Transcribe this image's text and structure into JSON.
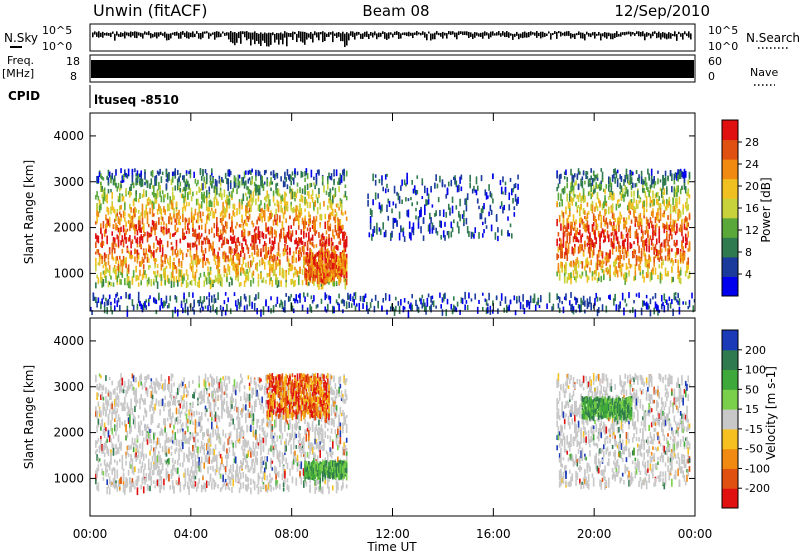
{
  "header": {
    "station": "Unwin (fitACF)",
    "beam": "Beam 08",
    "date": "12/Sep/2010"
  },
  "noise_panel": {
    "left_label": "N.Sky",
    "right_label": "N.Search",
    "left_ticks": [
      "10^5",
      "10^0"
    ],
    "right_ticks": [
      "10^5",
      "10^0"
    ]
  },
  "freq_panel": {
    "left_label_line1": "Freq.",
    "left_label_line2": "[MHz]",
    "left_ticks": [
      "18",
      "8"
    ],
    "right_ticks": [
      "60",
      "0"
    ],
    "right_label": "Nave"
  },
  "cpid_panel": {
    "label": "CPID",
    "value": "ltuseq -8510"
  },
  "x_axis": {
    "title": "Time UT",
    "ticks": [
      "00:00",
      "04:00",
      "08:00",
      "12:00",
      "16:00",
      "20:00",
      "00:00"
    ]
  },
  "colors": {
    "power_scale": [
      "#0000ee",
      "#1a3a9c",
      "#2f7a4e",
      "#5aa83a",
      "#c8d23a",
      "#f0c020",
      "#f08a10",
      "#e05010",
      "#e01010"
    ],
    "velocity_scale": [
      "#1a3ab8",
      "#2f7a4e",
      "#3fa83a",
      "#7ad04a",
      "#c8c8c8",
      "#f5c020",
      "#f08a10",
      "#e05010",
      "#e01010"
    ]
  },
  "chart_data": [
    {
      "type": "heatmap",
      "id": "power",
      "ylabel": "Slant Range [km]",
      "ylim": [
        180,
        4500
      ],
      "yticks": [
        "1000",
        "2000",
        "3000",
        "4000"
      ],
      "xlim_hours": [
        0,
        24
      ],
      "colorbar": {
        "label": "Power [dB]",
        "ticks": [
          "4",
          "8",
          "12",
          "16",
          "20",
          "24",
          "28"
        ],
        "range": [
          0,
          30
        ]
      },
      "regions": [
        {
          "t0": 0.2,
          "t1": 10.2,
          "r0": 800,
          "r1": 3300,
          "level": "mixed"
        },
        {
          "t0": 8.5,
          "t1": 10.2,
          "r0": 900,
          "r1": 1500,
          "level": "high"
        },
        {
          "t0": 11.0,
          "t1": 17.0,
          "r0": 1800,
          "r1": 3200,
          "level": "low"
        },
        {
          "t0": 18.5,
          "t1": 23.8,
          "r0": 900,
          "r1": 3300,
          "level": "mixed"
        },
        {
          "t0": 0.0,
          "t1": 24.0,
          "r0": 200,
          "r1": 600,
          "level": "sparse"
        }
      ]
    },
    {
      "type": "heatmap",
      "id": "velocity",
      "ylabel": "Slant Range [km]",
      "ylim": [
        180,
        4500
      ],
      "yticks": [
        "1000",
        "2000",
        "3000",
        "4000"
      ],
      "xlim_hours": [
        0,
        24
      ],
      "colorbar": {
        "label": "Velocity [m s-1]",
        "ticks": [
          "200",
          "100",
          "50",
          "15",
          "-15",
          "-50",
          "-100",
          "-200"
        ],
        "range": [
          -250,
          250
        ]
      },
      "regions": [
        {
          "t0": 0.2,
          "t1": 10.2,
          "r0": 800,
          "r1": 3300,
          "level": "near-zero"
        },
        {
          "t0": 7.0,
          "t1": 9.5,
          "r0": 2400,
          "r1": 3300,
          "level": "negative"
        },
        {
          "t0": 8.5,
          "t1": 10.2,
          "r0": 1100,
          "r1": 1400,
          "level": "positive"
        },
        {
          "t0": 18.5,
          "t1": 23.8,
          "r0": 900,
          "r1": 3300,
          "level": "near-zero"
        },
        {
          "t0": 19.5,
          "t1": 21.5,
          "r0": 2400,
          "r1": 2800,
          "level": "positive"
        }
      ]
    }
  ]
}
